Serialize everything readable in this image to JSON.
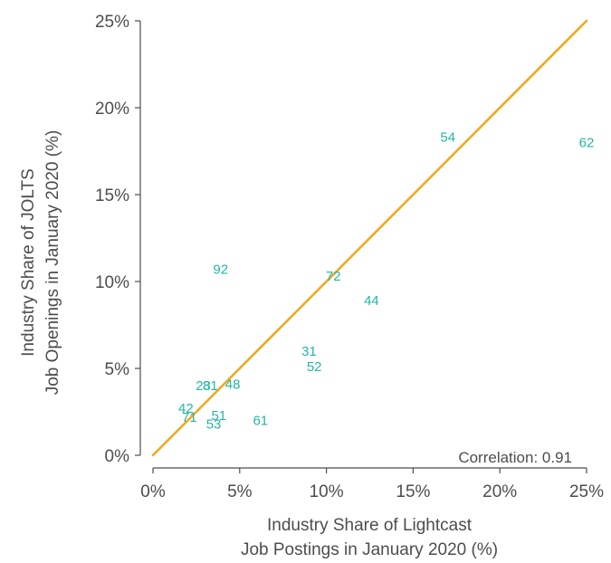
{
  "chart_data": {
    "type": "scatter",
    "title": "",
    "xlabel": [
      "Industry Share of Lightcast",
      "Job Postings in January 2020 (%)"
    ],
    "ylabel": [
      "Industry Share of JOLTS",
      "Job Openings in January 2020 (%)"
    ],
    "xlim": [
      0,
      25
    ],
    "ylim": [
      0,
      25
    ],
    "x_ticks": [
      "0%",
      "5%",
      "10%",
      "15%",
      "20%",
      "25%"
    ],
    "y_ticks": [
      "0%",
      "5%",
      "10%",
      "15%",
      "20%",
      "25%"
    ],
    "grid": false,
    "points": [
      {
        "label": "54",
        "x": 17.0,
        "y": 18.3
      },
      {
        "label": "62",
        "x": 25.0,
        "y": 18.0
      },
      {
        "label": "92",
        "x": 3.9,
        "y": 10.7
      },
      {
        "label": "72",
        "x": 10.4,
        "y": 10.3
      },
      {
        "label": "44",
        "x": 12.6,
        "y": 8.9
      },
      {
        "label": "31",
        "x": 9.0,
        "y": 6.0
      },
      {
        "label": "52",
        "x": 9.3,
        "y": 5.1
      },
      {
        "label": "23",
        "x": 2.9,
        "y": 4.0
      },
      {
        "label": "81",
        "x": 3.3,
        "y": 4.0
      },
      {
        "label": "48",
        "x": 4.6,
        "y": 4.1
      },
      {
        "label": "42",
        "x": 1.9,
        "y": 2.7
      },
      {
        "label": "71",
        "x": 2.1,
        "y": 2.2
      },
      {
        "label": "51",
        "x": 3.8,
        "y": 2.3
      },
      {
        "label": "53",
        "x": 3.5,
        "y": 1.8
      },
      {
        "label": "61",
        "x": 6.2,
        "y": 2.0
      }
    ],
    "reference_line": {
      "from": [
        0,
        0
      ],
      "to": [
        25,
        25
      ],
      "color": "#f2a81d"
    },
    "point_color": "#26b5a5",
    "annotation": "Correlation: 0.91"
  }
}
